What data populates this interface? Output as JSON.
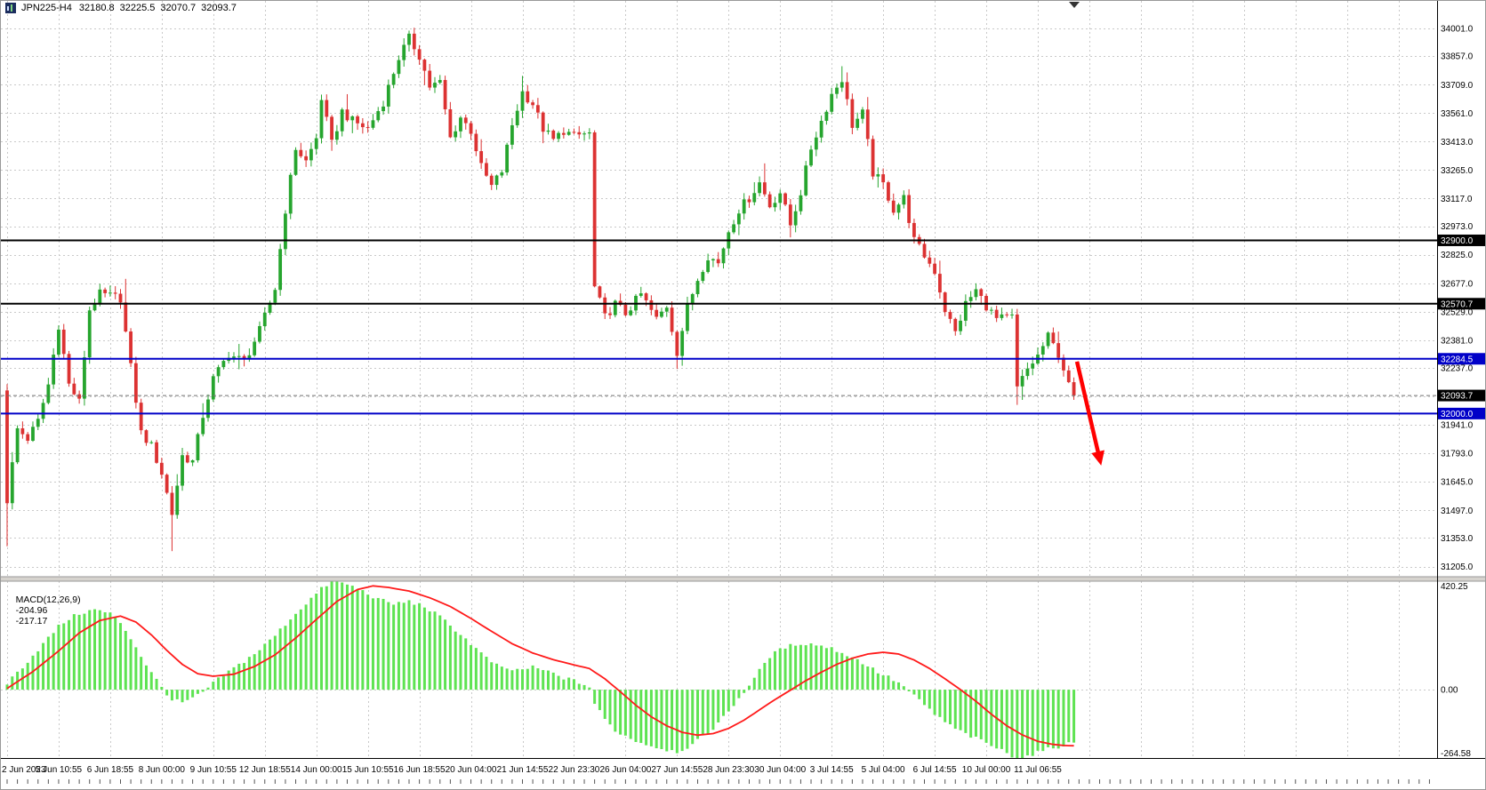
{
  "header": {
    "symbol": "JPN225-H4",
    "open": "32180.8",
    "high": "32225.5",
    "low": "32070.7",
    "close": "32093.7"
  },
  "chart_data": {
    "type": "candlestick",
    "symbol": "JPN225-H4",
    "timeframe": "H4",
    "legend": "JPN225-H4 32180.8 32225.5 32070.7 32093.7",
    "price_axis": {
      "scale_max": 34149,
      "scale_min": 31152,
      "ticks": [
        34001,
        33857,
        33709,
        33561,
        33413,
        33265,
        33117,
        32973,
        32825,
        32677,
        32529,
        32381,
        32237,
        31941,
        31793,
        31645,
        31497,
        31353,
        31205
      ],
      "hidden_gridlines": [
        32089
      ]
    },
    "time_labels": [
      "2 Jun 2023",
      "5 Jun 10:55",
      "6 Jun 18:55",
      "8 Jun 00:00",
      "9 Jun 10:55",
      "12 Jun 18:55",
      "14 Jun 00:00",
      "15 Jun 10:55",
      "16 Jun 18:55",
      "20 Jun 04:00",
      "21 Jun 14:55",
      "22 Jun 23:30",
      "26 Jun 04:00",
      "27 Jun 14:55",
      "28 Jun 23:30",
      "30 Jun 04:00",
      "3 Jul 14:55",
      "5 Jul 04:00",
      "6 Jul 14:55",
      "10 Jul 00:00",
      "11 Jul 06:55"
    ],
    "bars_per_label": 10,
    "bars_count": 208,
    "horizontal_lines": [
      {
        "price": 32900.0,
        "color": "#000000",
        "label_bg": "#000000"
      },
      {
        "price": 32570.7,
        "color": "#000000",
        "label_bg": "#000000"
      },
      {
        "price": 32284.5,
        "color": "#0000c8",
        "label_bg": "#0000c8"
      },
      {
        "price": 32000.0,
        "color": "#0000c8",
        "label_bg": "#0000c8"
      }
    ],
    "current_price": {
      "value": 32093.7,
      "label_bg": "#000000"
    },
    "first_open": 32120,
    "price_waypoints": [
      [
        0,
        31550
      ],
      [
        2,
        31920
      ],
      [
        4,
        31870
      ],
      [
        6,
        31960
      ],
      [
        8,
        32150
      ],
      [
        10,
        32460
      ],
      [
        12,
        32150
      ],
      [
        14,
        32060
      ],
      [
        16,
        32540
      ],
      [
        18,
        32620
      ],
      [
        22,
        32600
      ],
      [
        24,
        32240
      ],
      [
        26,
        31900
      ],
      [
        28,
        31830
      ],
      [
        30,
        31690
      ],
      [
        32,
        31480
      ],
      [
        34,
        31780
      ],
      [
        36,
        31750
      ],
      [
        38,
        31990
      ],
      [
        40,
        32180
      ],
      [
        43,
        32310
      ],
      [
        46,
        32270
      ],
      [
        49,
        32430
      ],
      [
        52,
        32650
      ],
      [
        54,
        33060
      ],
      [
        56,
        33380
      ],
      [
        58,
        33310
      ],
      [
        60,
        33430
      ],
      [
        61,
        33640
      ],
      [
        63,
        33400
      ],
      [
        65,
        33570
      ],
      [
        67,
        33520
      ],
      [
        70,
        33480
      ],
      [
        73,
        33620
      ],
      [
        76,
        33850
      ],
      [
        78,
        33950
      ],
      [
        80,
        33860
      ],
      [
        82,
        33700
      ],
      [
        84,
        33720
      ],
      [
        86,
        33430
      ],
      [
        88,
        33540
      ],
      [
        90,
        33470
      ],
      [
        92,
        33280
      ],
      [
        94,
        33180
      ],
      [
        96,
        33260
      ],
      [
        98,
        33500
      ],
      [
        100,
        33670
      ],
      [
        102,
        33610
      ],
      [
        104,
        33480
      ],
      [
        106,
        33420
      ],
      [
        108,
        33470
      ],
      [
        110,
        33440
      ],
      [
        113,
        33460
      ],
      [
        114,
        32660
      ],
      [
        116,
        32500
      ],
      [
        118,
        32570
      ],
      [
        120,
        32520
      ],
      [
        123,
        32620
      ],
      [
        126,
        32490
      ],
      [
        128,
        32560
      ],
      [
        130,
        32320
      ],
      [
        132,
        32550
      ],
      [
        134,
        32700
      ],
      [
        136,
        32820
      ],
      [
        138,
        32780
      ],
      [
        140,
        32950
      ],
      [
        142,
        33060
      ],
      [
        144,
        33120
      ],
      [
        146,
        33200
      ],
      [
        148,
        33080
      ],
      [
        150,
        33150
      ],
      [
        152,
        32980
      ],
      [
        154,
        33150
      ],
      [
        156,
        33380
      ],
      [
        158,
        33520
      ],
      [
        160,
        33660
      ],
      [
        162,
        33740
      ],
      [
        164,
        33500
      ],
      [
        166,
        33560
      ],
      [
        168,
        33250
      ],
      [
        170,
        33190
      ],
      [
        172,
        33060
      ],
      [
        174,
        33120
      ],
      [
        176,
        32900
      ],
      [
        178,
        32820
      ],
      [
        180,
        32740
      ],
      [
        182,
        32540
      ],
      [
        184,
        32420
      ],
      [
        186,
        32570
      ],
      [
        188,
        32640
      ],
      [
        190,
        32560
      ],
      [
        192,
        32490
      ],
      [
        195,
        32500
      ],
      [
        196,
        32130
      ],
      [
        198,
        32230
      ],
      [
        200,
        32300
      ],
      [
        202,
        32400
      ],
      [
        204,
        32310
      ],
      [
        206,
        32160
      ],
      [
        207,
        32093.7
      ]
    ],
    "wick_overrides": {
      "0": {
        "low": 31310
      },
      "23": {
        "high": 32700
      },
      "32": {
        "low": 31285
      },
      "78": {
        "high": 33990
      },
      "79": {
        "high": 34005
      },
      "100": {
        "high": 33755
      },
      "130": {
        "low": 32232
      },
      "147": {
        "high": 33300
      },
      "162": {
        "high": 33805
      },
      "196": {
        "low": 32045
      }
    },
    "arrow": {
      "from_bar": 207.6,
      "from_price": 32270,
      "to_bar": 212.3,
      "to_price": 31730,
      "color": "#ff0000"
    },
    "macd": {
      "name": "MACD(12,26,9)",
      "value_main": "-204.96",
      "value_signal": "-217.17",
      "axis_max": 420.25,
      "axis_zero": "0.00",
      "axis_min": -264.58,
      "macd_waypoints": [
        [
          0,
          25
        ],
        [
          4,
          110
        ],
        [
          8,
          200
        ],
        [
          10,
          245
        ],
        [
          12,
          275
        ],
        [
          14,
          295
        ],
        [
          17,
          310
        ],
        [
          20,
          295
        ],
        [
          22,
          260
        ],
        [
          24,
          200
        ],
        [
          26,
          130
        ],
        [
          28,
          65
        ],
        [
          30,
          10
        ],
        [
          32,
          -40
        ],
        [
          34,
          -50
        ],
        [
          36,
          -35
        ],
        [
          38,
          -10
        ],
        [
          40,
          25
        ],
        [
          43,
          70
        ],
        [
          46,
          110
        ],
        [
          49,
          155
        ],
        [
          52,
          210
        ],
        [
          55,
          275
        ],
        [
          58,
          335
        ],
        [
          61,
          390
        ],
        [
          63,
          420.25
        ],
        [
          66,
          408
        ],
        [
          69,
          382
        ],
        [
          72,
          350
        ],
        [
          75,
          332
        ],
        [
          78,
          342
        ],
        [
          81,
          322
        ],
        [
          84,
          282
        ],
        [
          87,
          232
        ],
        [
          90,
          178
        ],
        [
          93,
          122
        ],
        [
          96,
          82
        ],
        [
          99,
          76
        ],
        [
          102,
          86
        ],
        [
          105,
          70
        ],
        [
          108,
          46
        ],
        [
          111,
          28
        ],
        [
          113,
          10
        ],
        [
          114,
          -55
        ],
        [
          116,
          -115
        ],
        [
          118,
          -158
        ],
        [
          121,
          -190
        ],
        [
          124,
          -212
        ],
        [
          127,
          -228
        ],
        [
          130,
          -240
        ],
        [
          133,
          -214
        ],
        [
          136,
          -168
        ],
        [
          139,
          -108
        ],
        [
          141,
          -58
        ],
        [
          143,
          -8
        ],
        [
          145,
          45
        ],
        [
          148,
          130
        ],
        [
          151,
          165
        ],
        [
          154,
          180
        ],
        [
          157,
          175
        ],
        [
          160,
          160
        ],
        [
          163,
          135
        ],
        [
          166,
          105
        ],
        [
          169,
          68
        ],
        [
          172,
          38
        ],
        [
          174,
          12
        ],
        [
          176,
          -25
        ],
        [
          178,
          -60
        ],
        [
          180,
          -95
        ],
        [
          183,
          -140
        ],
        [
          186,
          -172
        ],
        [
          189,
          -198
        ],
        [
          192,
          -226
        ],
        [
          195,
          -255
        ],
        [
          197,
          -264.58
        ],
        [
          199,
          -250
        ],
        [
          201,
          -236
        ],
        [
          203,
          -226
        ],
        [
          205,
          -214
        ],
        [
          207,
          -204.96
        ]
      ],
      "signal_waypoints": [
        [
          0,
          5
        ],
        [
          5,
          70
        ],
        [
          10,
          150
        ],
        [
          14,
          220
        ],
        [
          18,
          268
        ],
        [
          22,
          285
        ],
        [
          25,
          262
        ],
        [
          28,
          212
        ],
        [
          31,
          152
        ],
        [
          34,
          98
        ],
        [
          37,
          62
        ],
        [
          40,
          52
        ],
        [
          44,
          60
        ],
        [
          48,
          90
        ],
        [
          52,
          135
        ],
        [
          56,
          200
        ],
        [
          60,
          272
        ],
        [
          64,
          342
        ],
        [
          68,
          388
        ],
        [
          71,
          402
        ],
        [
          74,
          396
        ],
        [
          78,
          382
        ],
        [
          82,
          356
        ],
        [
          86,
          322
        ],
        [
          90,
          276
        ],
        [
          94,
          226
        ],
        [
          98,
          178
        ],
        [
          102,
          142
        ],
        [
          106,
          116
        ],
        [
          110,
          96
        ],
        [
          113,
          82
        ],
        [
          116,
          42
        ],
        [
          119,
          -8
        ],
        [
          122,
          -60
        ],
        [
          125,
          -105
        ],
        [
          128,
          -140
        ],
        [
          131,
          -165
        ],
        [
          134,
          -176
        ],
        [
          137,
          -170
        ],
        [
          140,
          -150
        ],
        [
          143,
          -118
        ],
        [
          146,
          -78
        ],
        [
          149,
          -38
        ],
        [
          152,
          -2
        ],
        [
          155,
          35
        ],
        [
          158,
          68
        ],
        [
          161,
          98
        ],
        [
          164,
          122
        ],
        [
          167,
          138
        ],
        [
          170,
          145
        ],
        [
          173,
          138
        ],
        [
          176,
          115
        ],
        [
          179,
          82
        ],
        [
          182,
          42
        ],
        [
          185,
          0
        ],
        [
          188,
          -45
        ],
        [
          191,
          -95
        ],
        [
          194,
          -140
        ],
        [
          197,
          -175
        ],
        [
          200,
          -200
        ],
        [
          203,
          -212
        ],
        [
          205,
          -216
        ],
        [
          207,
          -217.17
        ]
      ]
    },
    "colors": {
      "up": "#26a52e",
      "down": "#dc3232",
      "grid": "#c9c9c9",
      "histogram": "#5ee352",
      "signal": "#ff1a1a",
      "hline_blue": "#0000c8",
      "axis_text": "#000000",
      "arrow": "#ff0000"
    }
  }
}
